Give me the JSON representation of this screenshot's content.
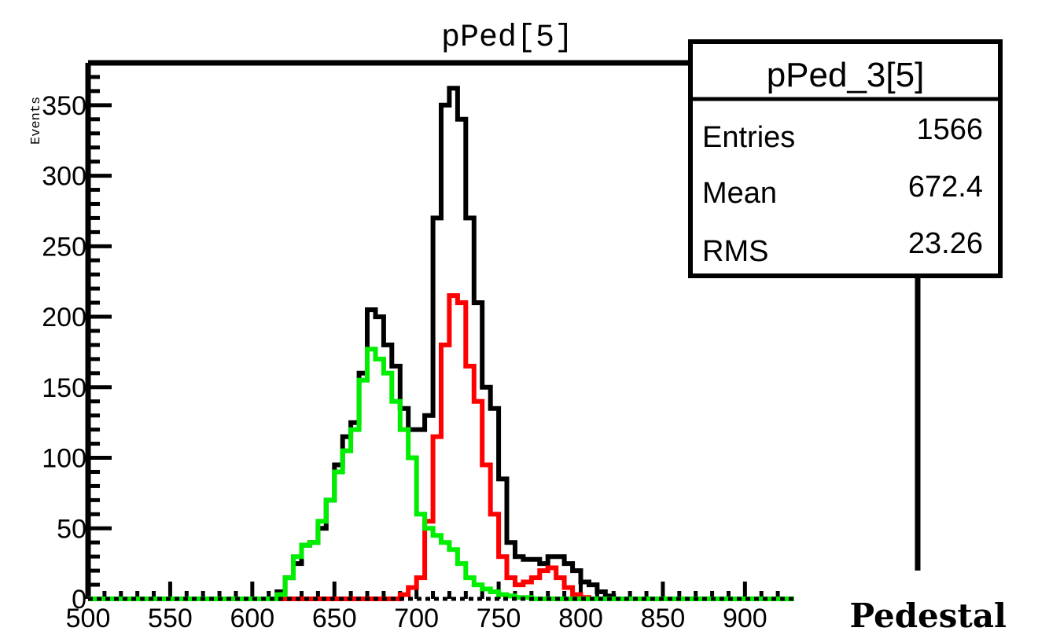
{
  "chart_data": {
    "type": "line",
    "title": "pPed[5]",
    "xlabel": "Pedestal",
    "ylabel": "Events",
    "xlim": [
      500,
      930
    ],
    "ylim": [
      0,
      380
    ],
    "bin_width": 5,
    "x_ticks": [
      500,
      550,
      600,
      650,
      700,
      750,
      800,
      850,
      900
    ],
    "y_ticks": [
      0,
      50,
      100,
      150,
      200,
      250,
      300,
      350
    ],
    "x_tick_labels": [
      "500",
      "550",
      "600",
      "650",
      "700",
      "750",
      "800",
      "850",
      "900"
    ],
    "y_tick_labels": [
      "0",
      "50",
      "100",
      "150",
      "200",
      "250",
      "300",
      "350"
    ],
    "colors": {
      "total": "#000000",
      "red": "#ff0000",
      "green": "#00ee00"
    },
    "series": [
      {
        "color": "#000000",
        "x": [
          615,
          620,
          625,
          630,
          635,
          640,
          645,
          650,
          655,
          660,
          665,
          670,
          675,
          680,
          685,
          690,
          695,
          700,
          705,
          710,
          715,
          720,
          725,
          730,
          735,
          740,
          745,
          750,
          755,
          760,
          765,
          770,
          775,
          780,
          785,
          790,
          795,
          800,
          805,
          810,
          815
        ],
        "y": [
          5,
          15,
          25,
          38,
          40,
          50,
          70,
          95,
          115,
          125,
          160,
          205,
          200,
          180,
          165,
          135,
          120,
          120,
          130,
          270,
          350,
          362,
          340,
          270,
          210,
          150,
          135,
          85,
          40,
          30,
          28,
          28,
          25,
          30,
          30,
          25,
          20,
          12,
          10,
          5,
          2
        ]
      },
      {
        "color": "#ff0000",
        "x": [
          690,
          695,
          700,
          705,
          710,
          715,
          720,
          725,
          730,
          735,
          740,
          745,
          750,
          755,
          760,
          765,
          770,
          775,
          780,
          785,
          790,
          795,
          800,
          805
        ],
        "y": [
          3,
          8,
          15,
          55,
          115,
          180,
          215,
          210,
          165,
          140,
          95,
          60,
          30,
          15,
          10,
          12,
          15,
          20,
          22,
          15,
          8,
          3,
          1,
          0
        ]
      },
      {
        "color": "#00ee00",
        "x": [
          615,
          620,
          625,
          630,
          635,
          640,
          645,
          650,
          655,
          660,
          665,
          670,
          675,
          680,
          685,
          690,
          695,
          700,
          705,
          710,
          715,
          720,
          725,
          730,
          735,
          740,
          745,
          750,
          755,
          760,
          765,
          770
        ],
        "y": [
          3,
          15,
          30,
          38,
          40,
          55,
          70,
          90,
          105,
          120,
          155,
          177,
          170,
          160,
          140,
          120,
          100,
          60,
          50,
          45,
          40,
          35,
          25,
          15,
          10,
          7,
          5,
          3,
          2,
          1,
          1,
          0
        ]
      }
    ],
    "stats_box": {
      "title": "pPed_3[5]",
      "rows": [
        {
          "label": "Entries",
          "value": "1566"
        },
        {
          "label": "Mean",
          "value": "672.4"
        },
        {
          "label": "RMS",
          "value": "23.26"
        }
      ]
    }
  }
}
